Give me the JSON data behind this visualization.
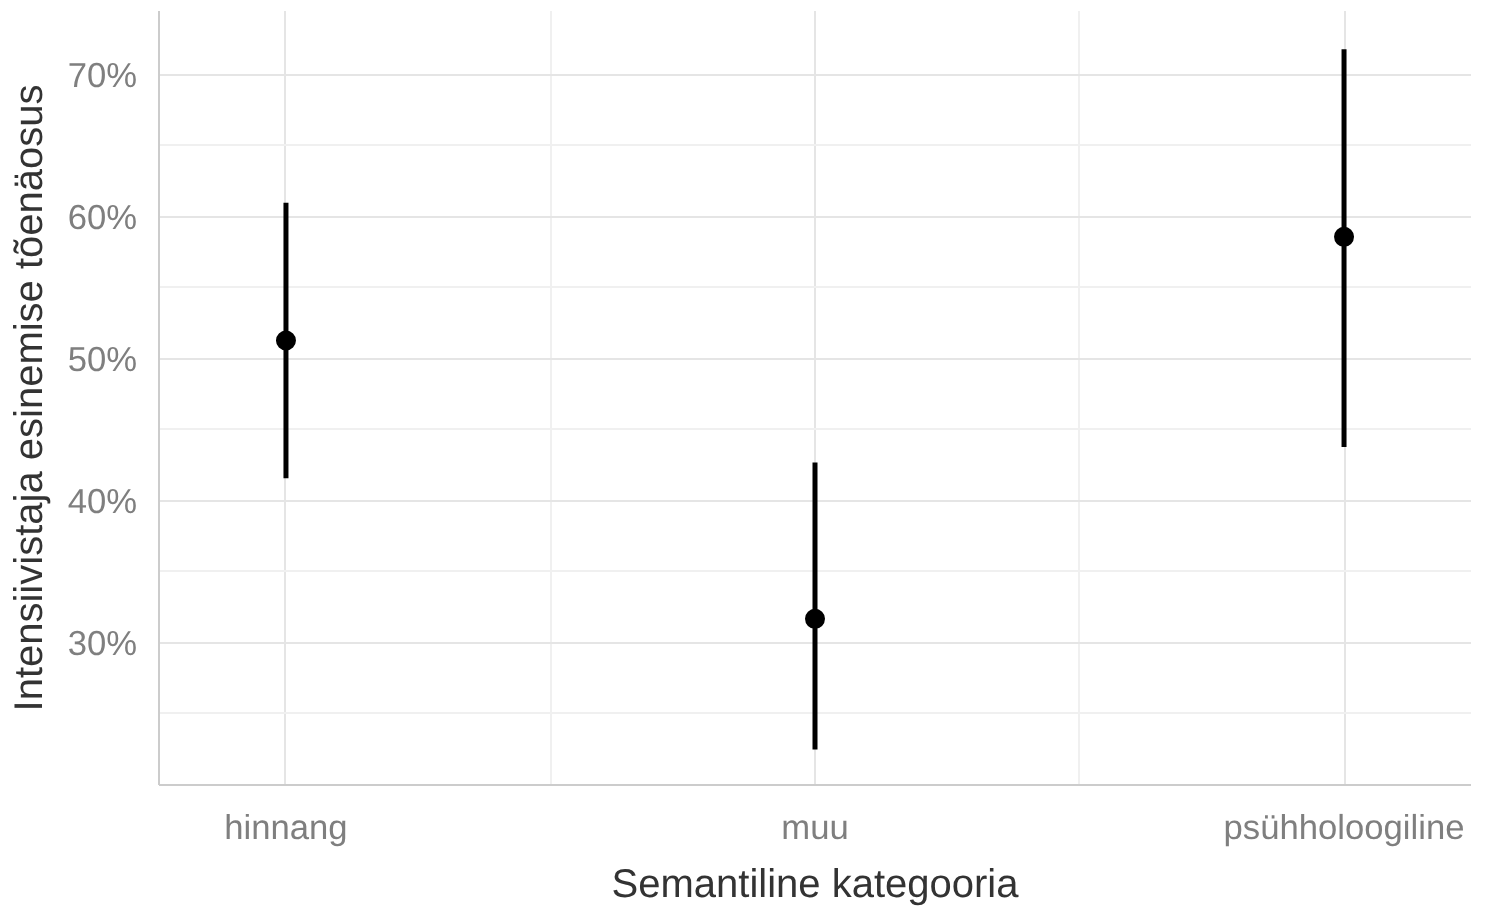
{
  "chart_data": {
    "type": "scatter",
    "xlabel": "Semantiline kategooria",
    "ylabel": "Intensiivistaja esinemise tõenäosus",
    "categories": [
      "hinnang",
      "muu",
      "psühholoogiline"
    ],
    "values": [
      51.3,
      31.7,
      58.6
    ],
    "errors": [
      [
        41.6,
        61.0
      ],
      [
        22.5,
        42.7
      ],
      [
        43.8,
        71.8
      ]
    ],
    "color": "#000000",
    "marker": "circle",
    "grid": true,
    "ylim": [
      20,
      74.5
    ],
    "yticks": [
      {
        "value": 25,
        "label": null
      },
      {
        "value": 30,
        "label": "30%"
      },
      {
        "value": 35,
        "label": null
      },
      {
        "value": 40,
        "label": "40%"
      },
      {
        "value": 45,
        "label": null
      },
      {
        "value": 50,
        "label": "50%"
      },
      {
        "value": 55,
        "label": null
      },
      {
        "value": 60,
        "label": "60%"
      },
      {
        "value": 65,
        "label": null
      },
      {
        "value": 70,
        "label": "70%"
      }
    ]
  }
}
